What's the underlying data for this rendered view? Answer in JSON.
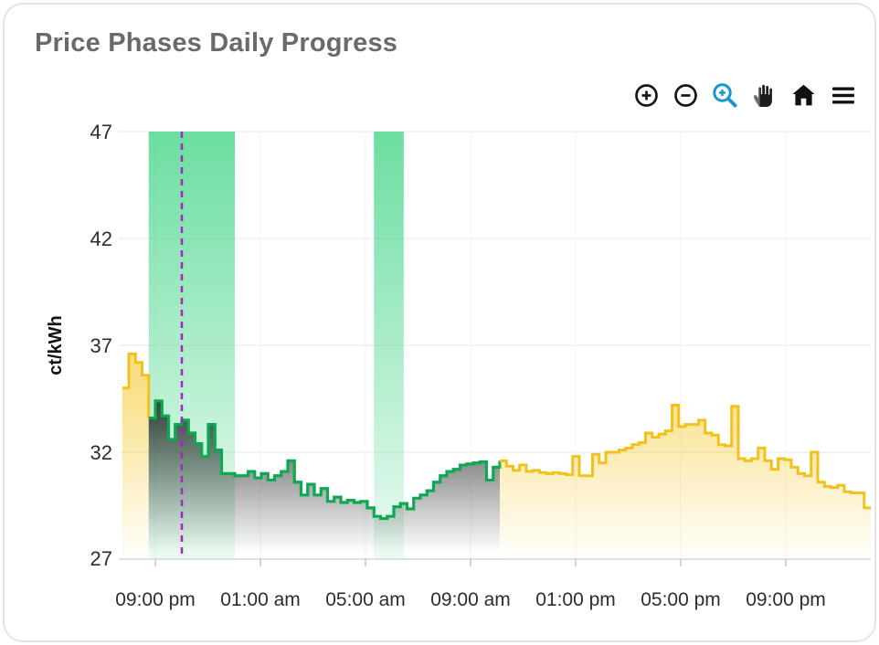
{
  "card": {
    "title": "Price Phases Daily Progress"
  },
  "toolbar": {
    "items": [
      "zoom-in",
      "zoom-out",
      "box-zoom",
      "pan",
      "reset-home",
      "menu"
    ],
    "active_tool": "box-zoom"
  },
  "colors": {
    "line_yellow": "#F3C11C",
    "line_green": "#0EA853",
    "fill_yellow": "#F4C726",
    "fill_dark": "#212624",
    "band": "#42D586",
    "now_line": "#A227BC",
    "grid": "#EFEFEF",
    "axis": "#D9D9D9",
    "tick": "#C9C9C9",
    "title_text": "#6A6A6A",
    "toolbar_active": "#1698CE",
    "toolbar_icon": "#161616"
  },
  "chart_data": {
    "type": "area",
    "title": "Price Phases Daily Progress",
    "xlabel": "",
    "ylabel": "ct/kWh",
    "ylim": [
      27,
      47
    ],
    "y_tick_values": [
      47,
      42,
      37,
      32,
      27
    ],
    "y_tick_labels": [
      "47",
      "42",
      "37",
      "32",
      "27"
    ],
    "x_tick_labels": [
      "09:00 pm",
      "01:00 am",
      "05:00 am",
      "09:00 am",
      "01:00 pm",
      "05:00 pm",
      "09:00 pm"
    ],
    "grid": true,
    "legend": false,
    "interval_minutes": 15,
    "start_time": "19:45",
    "values": [
      35.0,
      36.6,
      36.2,
      35.6,
      33.6,
      34.4,
      33.7,
      32.6,
      33.3,
      33.5,
      32.9,
      32.4,
      31.8,
      33.3,
      32.1,
      31.0,
      31.0,
      30.9,
      30.9,
      31.1,
      30.8,
      31.0,
      30.7,
      30.9,
      31.1,
      31.6,
      30.6,
      30.0,
      30.5,
      30.0,
      30.3,
      29.7,
      29.9,
      29.65,
      29.75,
      29.65,
      29.7,
      29.4,
      29.0,
      28.9,
      29.0,
      29.45,
      29.6,
      29.35,
      29.85,
      30.0,
      30.2,
      30.6,
      30.9,
      31.1,
      31.2,
      31.4,
      31.45,
      31.5,
      31.55,
      30.7,
      31.3,
      31.6,
      31.35,
      31.15,
      31.4,
      31.1,
      31.15,
      31.05,
      31.0,
      31.05,
      31.0,
      30.95,
      31.8,
      30.9,
      30.9,
      31.9,
      31.5,
      32.0,
      32.0,
      32.1,
      32.2,
      32.35,
      32.45,
      32.9,
      32.7,
      32.85,
      33.0,
      34.2,
      33.2,
      33.3,
      33.3,
      33.5,
      32.9,
      32.8,
      32.35,
      32.3,
      34.15,
      31.7,
      31.6,
      31.7,
      32.2,
      31.6,
      31.2,
      31.7,
      31.65,
      31.3,
      31.0,
      30.9,
      32.0,
      30.6,
      30.4,
      30.35,
      30.45,
      30.15,
      30.1,
      30.1,
      29.4
    ],
    "segments": [
      {
        "name": "price-before-green-phase",
        "stroke": "#F3C11C",
        "fill": "yellow",
        "from_index": 0,
        "to_index": 4
      },
      {
        "name": "price-green-phase",
        "stroke": "#0EA853",
        "fill": "dark",
        "from_index": 4,
        "to_index": 57
      },
      {
        "name": "price-after-green-phase",
        "stroke": "#F3C11C",
        "fill": "yellow",
        "from_index": 57,
        "to_index": 113
      }
    ],
    "bands": [
      {
        "name": "green-phase-band",
        "start_index": 4,
        "end_index": 17,
        "start_time": "20:45",
        "end_time": "00:00"
      },
      {
        "name": "green-phase-band",
        "start_index": 38,
        "end_index": 42.5,
        "start_time": "05:15",
        "end_time": "06:20"
      }
    ],
    "now_line": {
      "index": 9,
      "time": "22:00",
      "style": "dashed"
    }
  }
}
